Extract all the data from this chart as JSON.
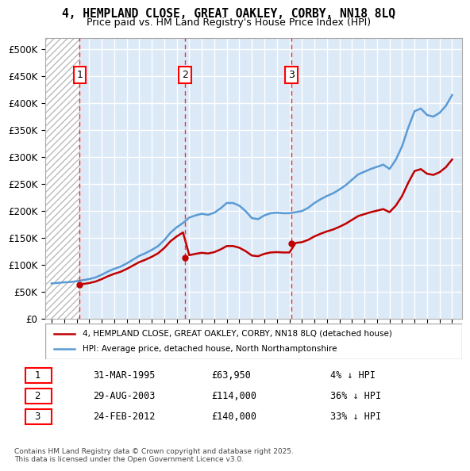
{
  "title_line1": "4, HEMPLAND CLOSE, GREAT OAKLEY, CORBY, NN18 8LQ",
  "title_line2": "Price paid vs. HM Land Registry's House Price Index (HPI)",
  "ylabel": "",
  "xlabel": "",
  "ylim": [
    0,
    520000
  ],
  "yticks": [
    0,
    50000,
    100000,
    150000,
    200000,
    250000,
    300000,
    350000,
    400000,
    450000,
    500000
  ],
  "ytick_labels": [
    "£0",
    "£50K",
    "£100K",
    "£150K",
    "£200K",
    "£250K",
    "£300K",
    "£350K",
    "£400K",
    "£450K",
    "£500K"
  ],
  "xlim_start": 1992.5,
  "xlim_end": 2025.8,
  "hpi_color": "#5b9bd5",
  "price_color": "#c00000",
  "purchase_dates": [
    1995.247,
    2003.66,
    2012.15
  ],
  "purchase_prices": [
    63950,
    114000,
    140000
  ],
  "purchase_labels": [
    "1",
    "2",
    "3"
  ],
  "legend_price_label": "4, HEMPLAND CLOSE, GREAT OAKLEY, CORBY, NN18 8LQ (detached house)",
  "legend_hpi_label": "HPI: Average price, detached house, North Northamptonshire",
  "table_rows": [
    [
      "1",
      "31-MAR-1995",
      "£63,950",
      "4% ↓ HPI"
    ],
    [
      "2",
      "29-AUG-2003",
      "£114,000",
      "36% ↓ HPI"
    ],
    [
      "3",
      "24-FEB-2012",
      "£140,000",
      "33% ↓ HPI"
    ]
  ],
  "footnote": "Contains HM Land Registry data © Crown copyright and database right 2025.\nThis data is licensed under the Open Government Licence v3.0.",
  "bg_hatch_color": "#cccccc",
  "grid_color": "#aaaaaa"
}
